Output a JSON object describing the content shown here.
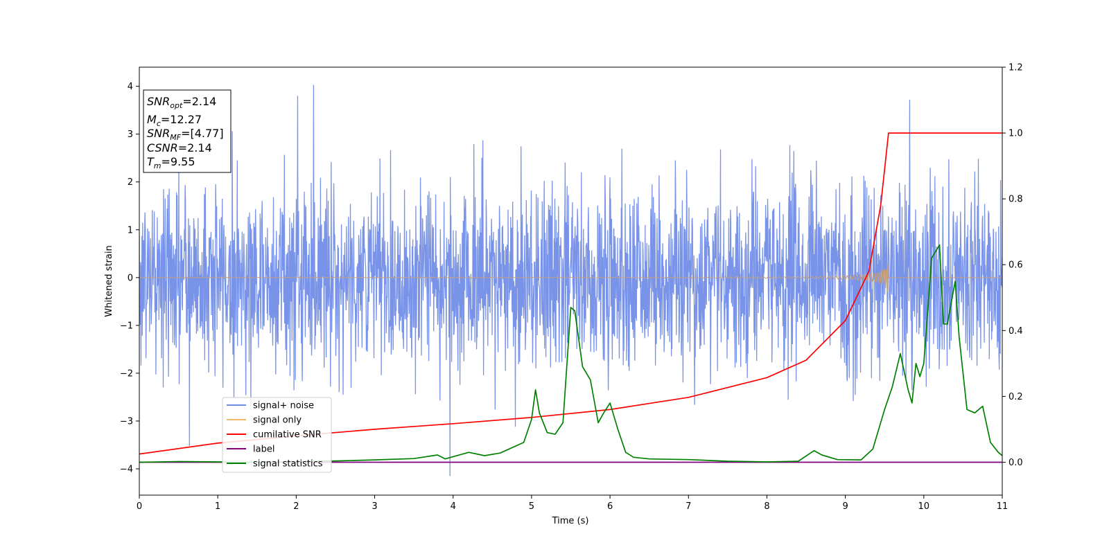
{
  "chart_data": {
    "type": "line",
    "xlabel": "Time (s)",
    "ylabel": "Whitened strain",
    "xlim": [
      0,
      11
    ],
    "ylim_left": [
      -4.55,
      4.4
    ],
    "ylim_right": [
      -0.1,
      1.2
    ],
    "x_ticks": [
      0,
      1,
      2,
      3,
      4,
      5,
      6,
      7,
      8,
      9,
      10,
      11
    ],
    "y_ticks_left": [
      4,
      3,
      2,
      1,
      0,
      -1,
      -2,
      -3,
      -4
    ],
    "y_ticks_right": [
      "1.2",
      "1.0",
      "0.8",
      "0.6",
      "0.4",
      "0.2",
      "0.0"
    ],
    "info_box": {
      "snr_opt": {
        "name": "SNR",
        "sub": "opt",
        "value": "=2.14"
      },
      "mc": {
        "name": "M",
        "sub": "c",
        "value": "=12.27"
      },
      "snr_mf": {
        "name": "SNR",
        "sub": "MF",
        "value": "=[4.77]"
      },
      "csnr": {
        "name": "CSNR",
        "value": "=2.14"
      },
      "tm": {
        "name": "T",
        "sub": "m",
        "value": "=9.55"
      }
    },
    "legend": {
      "placement": "lower-left",
      "items": [
        {
          "label": "signal+ noise",
          "color": "#6d8ae6"
        },
        {
          "label": "signal only",
          "color": "#f5b86a"
        },
        {
          "label": "cumilative SNR",
          "color": "#ff0000"
        },
        {
          "label": "label",
          "color": "#800080"
        },
        {
          "label": "signal statistics",
          "color": "#008000"
        }
      ]
    },
    "series": [
      {
        "name": "signal+ noise",
        "axis": "left",
        "color": "#6d8ae6",
        "style": "gaussian noise, sigma about 0.95, x from 0 to 11",
        "peaks": [
          [
            2.22,
            4.03
          ],
          [
            2.02,
            3.8
          ],
          [
            9.82,
            3.72
          ],
          [
            3.96,
            -4.15
          ],
          [
            0.64,
            -3.52
          ]
        ]
      },
      {
        "name": "signal only",
        "axis": "left",
        "color": "#c8a07a",
        "style": "chirp, amplitude growing to about 0.38 at t = 9.55",
        "x_start": 0,
        "x_end": 9.55,
        "peak_amplitude": 0.38
      },
      {
        "name": "cumilative SNR",
        "axis": "right",
        "color": "#ff0000",
        "x": [
          0,
          1,
          2,
          3,
          4,
          5,
          6,
          7,
          8,
          8.5,
          9,
          9.3,
          9.45,
          9.55,
          11
        ],
        "y": [
          0.025,
          0.058,
          0.08,
          0.1,
          0.117,
          0.136,
          0.16,
          0.197,
          0.257,
          0.31,
          0.43,
          0.58,
          0.78,
          1.0,
          1.0
        ]
      },
      {
        "name": "label",
        "axis": "right",
        "color": "#800080",
        "x": [
          0,
          11
        ],
        "y": [
          0.0,
          0.0
        ]
      },
      {
        "name": "signal statistics",
        "axis": "right",
        "color": "#008000",
        "x": [
          0,
          0.5,
          1,
          1.5,
          2,
          2.5,
          3,
          3.5,
          3.8,
          3.9,
          4.0,
          4.2,
          4.4,
          4.6,
          4.9,
          5.0,
          5.05,
          5.1,
          5.2,
          5.3,
          5.4,
          5.5,
          5.55,
          5.65,
          5.75,
          5.85,
          5.92,
          6.0,
          6.1,
          6.2,
          6.3,
          6.5,
          7.0,
          7.5,
          8.0,
          8.4,
          8.6,
          8.7,
          8.9,
          9.2,
          9.35,
          9.5,
          9.6,
          9.7,
          9.8,
          9.85,
          9.9,
          9.95,
          10.0,
          10.1,
          10.2,
          10.25,
          10.3,
          10.4,
          10.45,
          10.55,
          10.65,
          10.75,
          10.85,
          10.95,
          11.0
        ],
        "y": [
          0.0,
          0.002,
          0.001,
          0.0,
          0.002,
          0.004,
          0.007,
          0.011,
          0.022,
          0.01,
          0.017,
          0.03,
          0.02,
          0.028,
          0.06,
          0.13,
          0.22,
          0.15,
          0.09,
          0.085,
          0.12,
          0.47,
          0.46,
          0.29,
          0.25,
          0.12,
          0.15,
          0.18,
          0.1,
          0.03,
          0.015,
          0.01,
          0.008,
          0.003,
          0.001,
          0.003,
          0.035,
          0.022,
          0.008,
          0.007,
          0.04,
          0.16,
          0.23,
          0.33,
          0.22,
          0.18,
          0.3,
          0.26,
          0.3,
          0.62,
          0.66,
          0.42,
          0.42,
          0.55,
          0.38,
          0.16,
          0.15,
          0.17,
          0.06,
          0.03,
          0.02
        ]
      }
    ]
  }
}
